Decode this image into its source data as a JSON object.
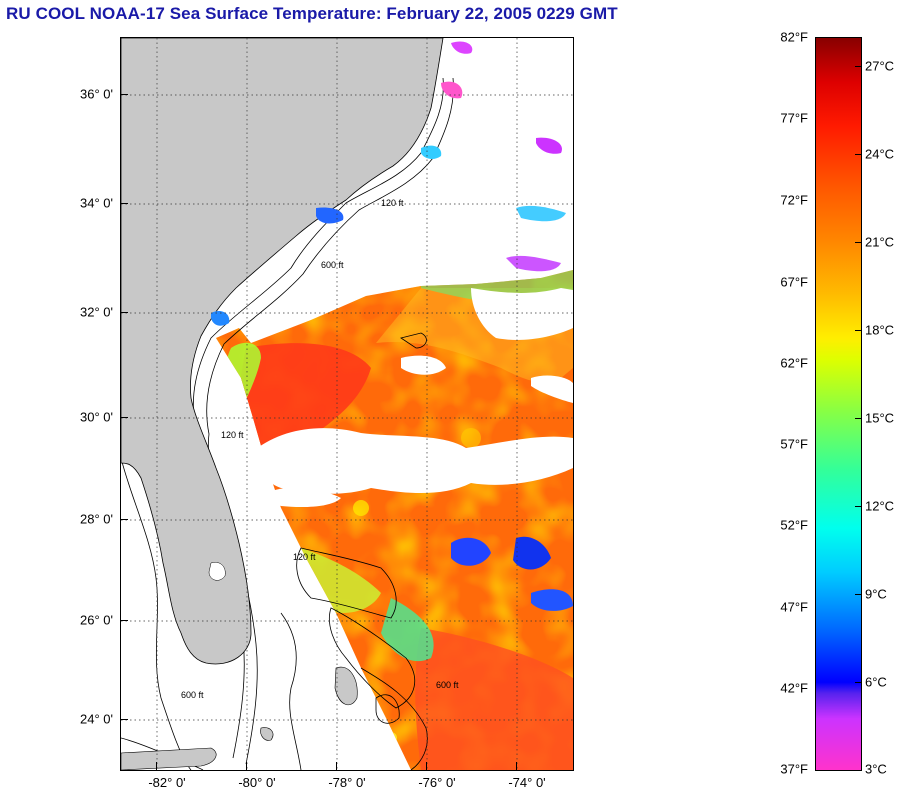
{
  "header": {
    "title": "RU COOL  NOAA-17  Sea Surface Temperature:  February 22, 2005 0229 GMT"
  },
  "map": {
    "latitude_labels": [
      "36° 0'",
      "34° 0'",
      "32° 0'",
      "30° 0'",
      "28° 0'",
      "26° 0'",
      "24° 0'"
    ],
    "longitude_labels": [
      "-82° 0'",
      "-80° 0'",
      "-78° 0'",
      "-76° 0'",
      "-74° 0'"
    ],
    "contour_labels": [
      "120 ft",
      "600 ft",
      "120 ft",
      "600 ft",
      "120 ft",
      "600 ft"
    ],
    "colors": {
      "land": "#c8c8c8",
      "cloud_nodata": "#ffffff",
      "title": "#1a1aa8"
    }
  },
  "colorbar": {
    "fahrenheit_labels": [
      "82°F",
      "77°F",
      "72°F",
      "67°F",
      "62°F",
      "57°F",
      "52°F",
      "47°F",
      "42°F",
      "37°F"
    ],
    "celsius_labels": [
      "27°C",
      "24°C",
      "21°C",
      "18°C",
      "15°C",
      "12°C",
      "9°C",
      "6°C",
      "3°C"
    ],
    "range_f": [
      37,
      82
    ],
    "range_c": [
      3,
      27.8
    ]
  }
}
